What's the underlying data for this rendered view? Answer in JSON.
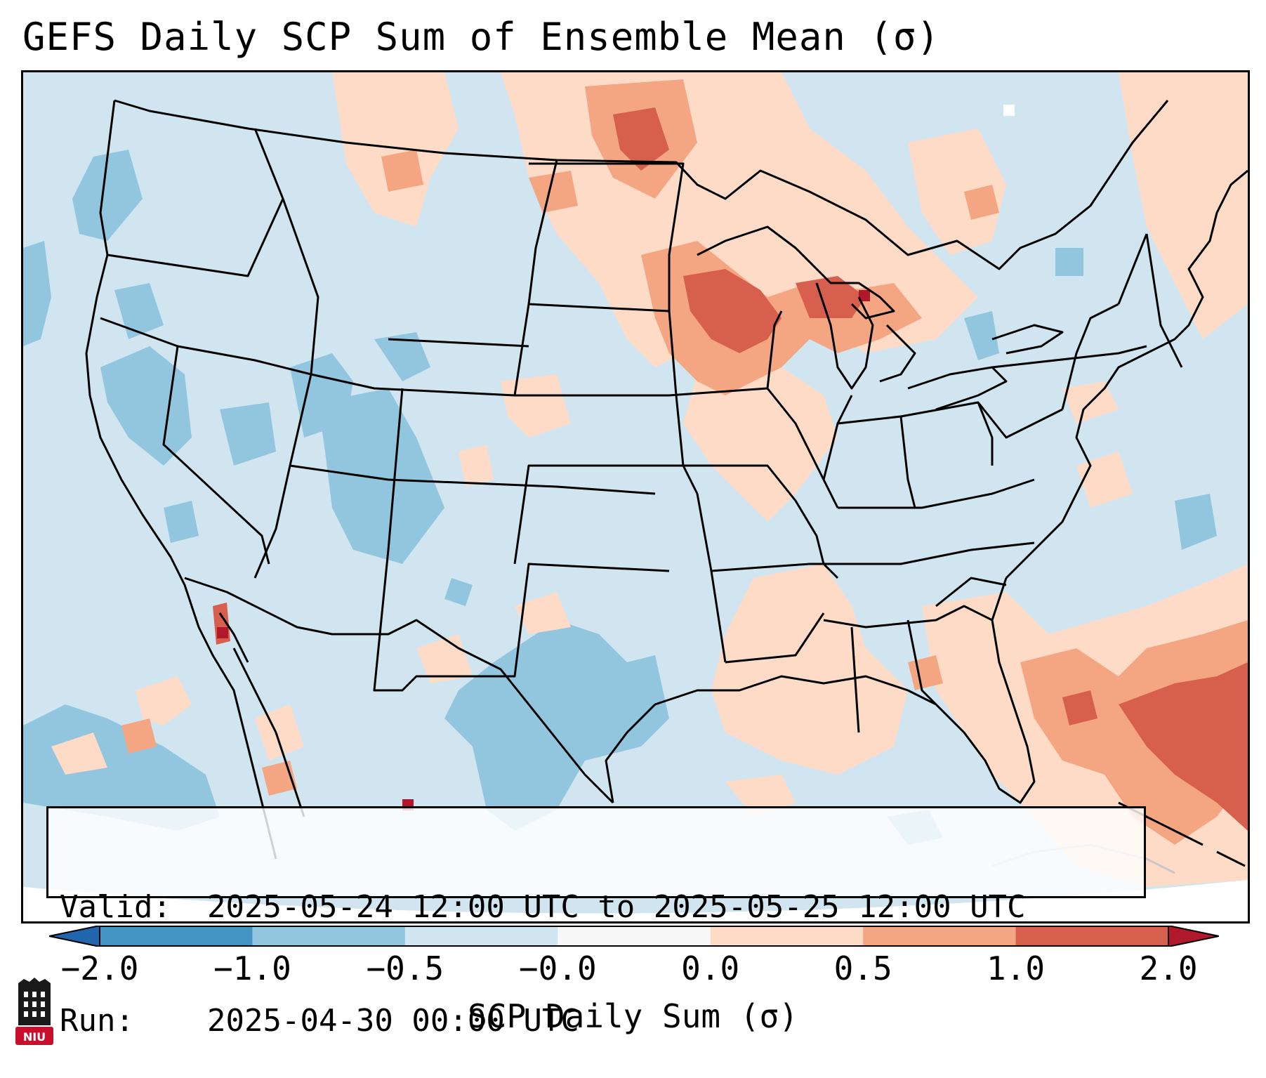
{
  "title": "GEFS Daily SCP Sum of Ensemble Mean (σ)",
  "info": {
    "valid_label": "Valid:",
    "valid_value": "2025-05-24 12:00 UTC to 2025-05-25 12:00 UTC",
    "run_label": "Run:",
    "run_value": "2025-04-30 00:00 UTC"
  },
  "colorbar": {
    "label": "SCP Daily Sum (σ)",
    "tick_labels": [
      "−2.0",
      "−1.0",
      "−0.5",
      "−0.0",
      "0.0",
      "0.5",
      "1.0",
      "2.0"
    ],
    "bins": [
      {
        "from": -2.0,
        "to": -1.0,
        "color": "#4393c3"
      },
      {
        "from": -1.0,
        "to": -0.5,
        "color": "#92c5de"
      },
      {
        "from": -0.5,
        "to": -0.0,
        "color": "#d1e5f0"
      },
      {
        "from": -0.0,
        "to": 0.0,
        "color": "#f7f7f7"
      },
      {
        "from": 0.0,
        "to": 0.5,
        "color": "#fddbc7"
      },
      {
        "from": 0.5,
        "to": 1.0,
        "color": "#f4a582"
      },
      {
        "from": 1.0,
        "to": 2.0,
        "color": "#d6604d"
      }
    ],
    "under_color": "#2166ac",
    "over_color": "#b2182b",
    "extend": "both"
  },
  "map": {
    "projection": "Lambert conformal",
    "region": "Contiguous United States",
    "background_color": "#d1e5f0",
    "boundary_color": "#000000",
    "features": [
      "coastlines",
      "country borders",
      "state borders"
    ]
  },
  "logo": {
    "text": "NIU",
    "description": "NIU logo",
    "color": "#c8102e"
  }
}
